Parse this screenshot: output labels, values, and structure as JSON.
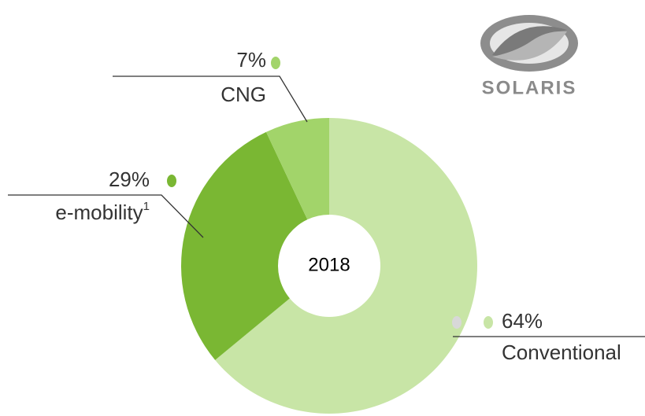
{
  "chart_data": {
    "type": "donut",
    "center_label": "2018",
    "categories": [
      "Conventional",
      "e-mobility",
      "CNG"
    ],
    "category_notes": [
      null,
      "1",
      null
    ],
    "values": [
      64,
      29,
      7
    ],
    "value_labels": [
      "64%",
      "29%",
      "7%"
    ],
    "colors": [
      "#c8e5a6",
      "#7ab733",
      "#a2d46a"
    ],
    "logo_text": "SOLARIS"
  }
}
